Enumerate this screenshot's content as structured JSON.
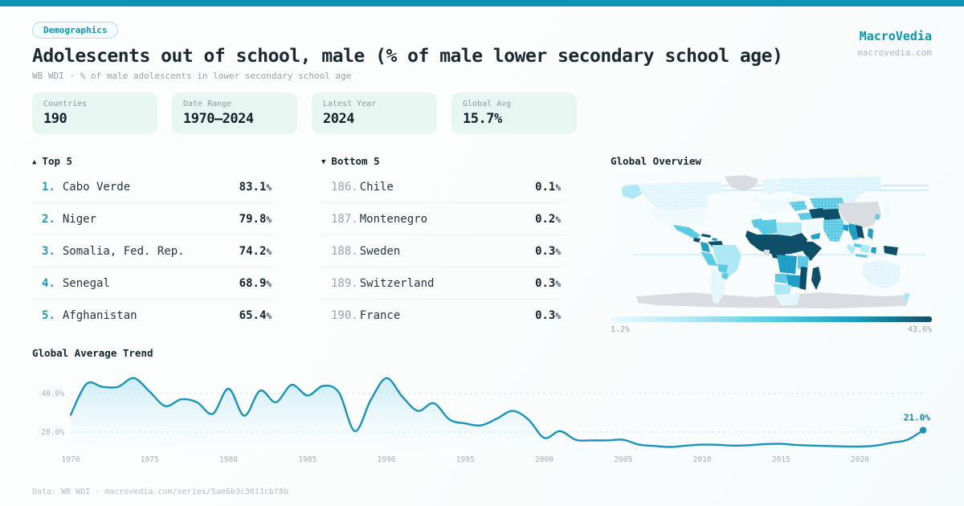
{
  "brand": {
    "name": "MacroVedia",
    "url": "macrovedia.com"
  },
  "header": {
    "badge": "Demographics",
    "title": "Adolescents out of school, male (% of male lower secondary school age)",
    "subtitle": "WB WDI · % of male adolescents in lower secondary school age"
  },
  "stats": [
    {
      "label": "Countries",
      "value": "190"
    },
    {
      "label": "Date Range",
      "value": "1970–2024"
    },
    {
      "label": "Latest Year",
      "value": "2024"
    },
    {
      "label": "Global Avg",
      "value": "15.7%"
    }
  ],
  "units": {
    "percent": "%"
  },
  "top5": {
    "icon": "▲",
    "title": "Top 5",
    "items": [
      {
        "rank": "1.",
        "name": "Cabo Verde",
        "value": "83.1"
      },
      {
        "rank": "2.",
        "name": "Niger",
        "value": "79.8"
      },
      {
        "rank": "3.",
        "name": "Somalia, Fed. Rep.",
        "value": "74.2"
      },
      {
        "rank": "4.",
        "name": "Senegal",
        "value": "68.9"
      },
      {
        "rank": "5.",
        "name": "Afghanistan",
        "value": "65.4"
      }
    ]
  },
  "bottom5": {
    "icon": "▼",
    "title": "Bottom 5",
    "items": [
      {
        "rank": "186.",
        "name": "Chile",
        "value": "0.1"
      },
      {
        "rank": "187.",
        "name": "Montenegro",
        "value": "0.2"
      },
      {
        "rank": "188.",
        "name": "Sweden",
        "value": "0.3"
      },
      {
        "rank": "189.",
        "name": "Switzerland",
        "value": "0.3"
      },
      {
        "rank": "190.",
        "name": "France",
        "value": "0.3"
      }
    ]
  },
  "map": {
    "title": "Global Overview",
    "legend_min": "1.2%",
    "legend_max": "43.6%",
    "scale_colors": [
      "#eafbfd",
      "#aee8f5",
      "#5ccae4",
      "#1e9fc6",
      "#0f4e68"
    ],
    "no_data_color": "#d9dde1"
  },
  "chart_data": {
    "type": "area",
    "title": "Global Average Trend",
    "x_start": 1970,
    "x_end": 2024,
    "x_ticks": [
      1970,
      1975,
      1980,
      1985,
      1990,
      1995,
      2000,
      2005,
      2010,
      2015,
      2020
    ],
    "y_ticks": [
      {
        "label": "40.0%",
        "value": 40
      },
      {
        "label": "20.0%",
        "value": 20
      }
    ],
    "ylim": [
      0,
      55
    ],
    "grid": true,
    "values": [
      29,
      45,
      43.5,
      43.5,
      48,
      41,
      33.5,
      37,
      35.5,
      29.5,
      42.5,
      28.5,
      41.5,
      35.5,
      44.5,
      39,
      44,
      40.5,
      20.5,
      36.5,
      48,
      38.5,
      31,
      35,
      26.5,
      24.5,
      23.5,
      27,
      31,
      26.5,
      17,
      20.5,
      16,
      15.7,
      15.7,
      16,
      13.5,
      12.8,
      12.3,
      13,
      13.5,
      13.4,
      13,
      13.2,
      13.8,
      13.9,
      13.3,
      13,
      12.8,
      12.6,
      12.5,
      13,
      14.5,
      16,
      21
    ],
    "end_label": "21.0%"
  },
  "footer": {
    "text": "Data: WB WDI · macrovedia.com/series/5ae6b3c3011cbf8b"
  },
  "colors": {
    "accent": "#0d94b4",
    "line": "#1a93ba",
    "rank_top": "#1f97bf"
  }
}
